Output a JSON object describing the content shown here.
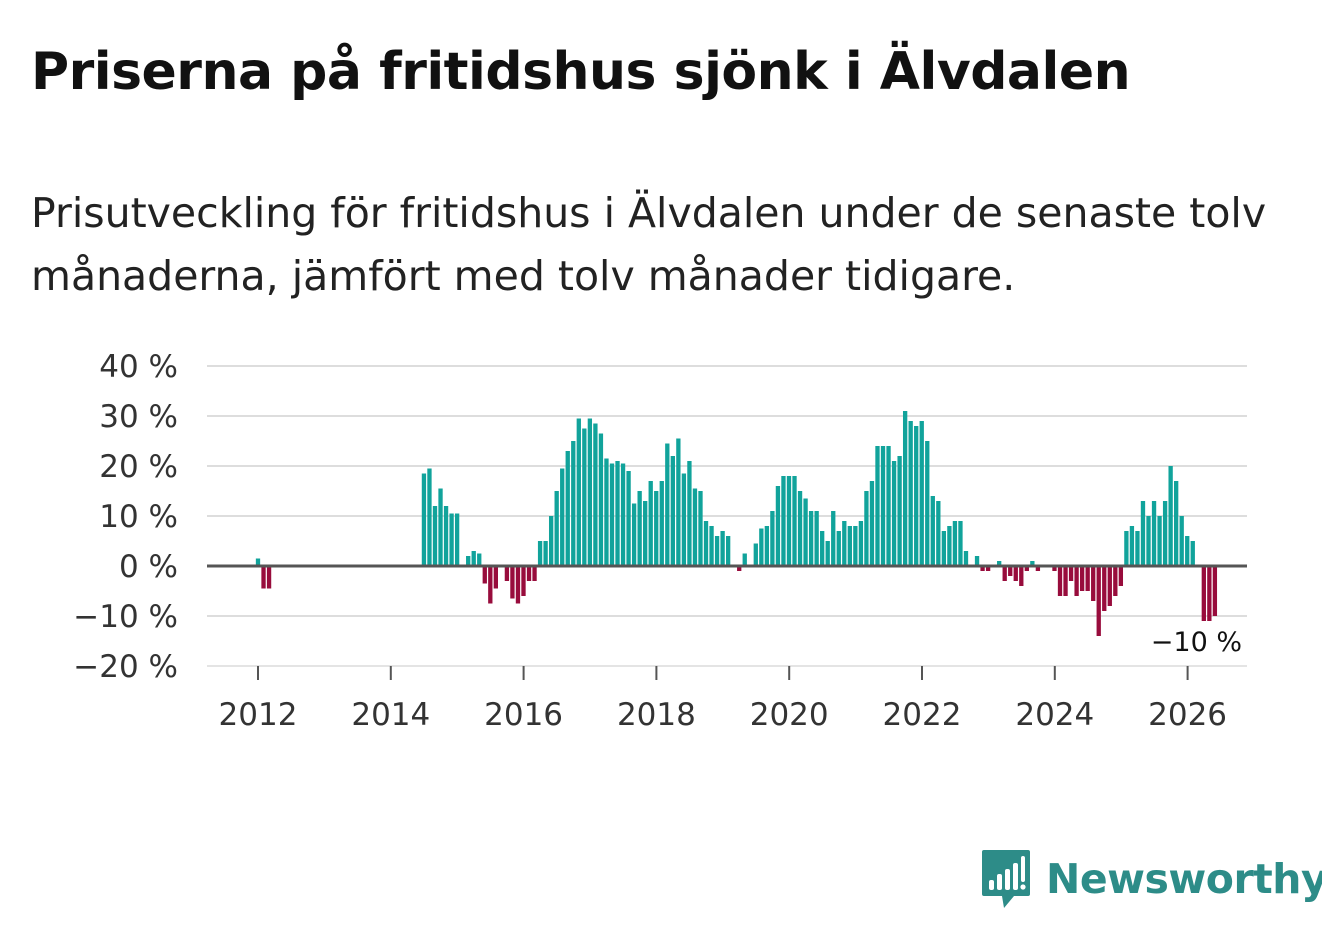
{
  "title": "Priserna på fritidshus sjönk i Älvdalen",
  "subtitle": "Prisutveckling för fritidshus i Älvdalen under de senaste tolv månaderna, jämfört med tolv månader tidigare.",
  "brand": {
    "name": "Newsworthy",
    "color": "#2d8c88",
    "icon": "bar-chart-speech-bubble-icon"
  },
  "colors": {
    "positive": "#11a39b",
    "negative": "#980c3c",
    "grid": "#dddddd",
    "zero": "#555555"
  },
  "chart_data": {
    "type": "bar",
    "x_unit": "year (decimal, monthly bars)",
    "ylim": [
      -20,
      40
    ],
    "yticks": [
      40,
      30,
      20,
      10,
      0,
      -10,
      -20
    ],
    "ytick_labels": [
      "40 %",
      "30 %",
      "20 %",
      "10 %",
      "0 %",
      "−10 %",
      "−20 %"
    ],
    "xticks": [
      2012,
      2014,
      2016,
      2018,
      2020,
      2022,
      2024,
      2026
    ],
    "xtick_labels": [
      "2012",
      "2014",
      "2016",
      "2018",
      "2020",
      "2022",
      "2024",
      "2026"
    ],
    "grid": true,
    "last_value_label": "−10 %",
    "start": 2012.0,
    "step": 0.0833,
    "values": [
      1.5,
      -4.5,
      -4.5,
      0,
      0,
      0,
      0,
      0,
      0,
      0,
      0,
      0,
      0,
      0,
      0,
      0,
      0,
      0,
      0,
      0,
      0,
      0,
      0,
      0,
      0,
      0,
      0,
      0,
      0,
      0,
      18.5,
      19.5,
      12,
      15.5,
      12,
      10.5,
      10.5,
      0,
      2,
      3,
      2.5,
      -3.5,
      -7.5,
      -4.5,
      0,
      -3,
      -6.5,
      -7.5,
      -6,
      -3,
      -3,
      5,
      5,
      10,
      15,
      19.5,
      23,
      25,
      29.5,
      27.5,
      29.5,
      28.5,
      26.5,
      21.5,
      20.5,
      21,
      20.5,
      19,
      12.5,
      15,
      13,
      17,
      15,
      17,
      24.5,
      22,
      25.5,
      18.5,
      21,
      15.5,
      15,
      9,
      8,
      6,
      7,
      6,
      0,
      -1,
      2.5,
      0,
      4.5,
      7.5,
      8,
      11,
      16,
      18,
      18,
      18,
      15,
      13.5,
      11,
      11,
      7,
      5,
      11,
      7,
      9,
      8,
      8,
      9,
      15,
      17,
      24,
      24,
      24,
      21,
      22,
      31,
      29,
      28,
      29,
      25,
      14,
      13,
      7,
      8,
      9,
      9,
      3,
      0,
      2,
      -1,
      -1,
      0,
      1,
      -3,
      -2,
      -3,
      -4,
      -1,
      1,
      -1,
      0,
      0,
      -1,
      -6,
      -6,
      -3,
      -6,
      -5,
      -5,
      -7,
      -14,
      -9,
      -8,
      -6,
      -4,
      7,
      8,
      7,
      13,
      10,
      13,
      10,
      13,
      20,
      17,
      10,
      6,
      5,
      0,
      -11,
      -11,
      -10
    ]
  }
}
